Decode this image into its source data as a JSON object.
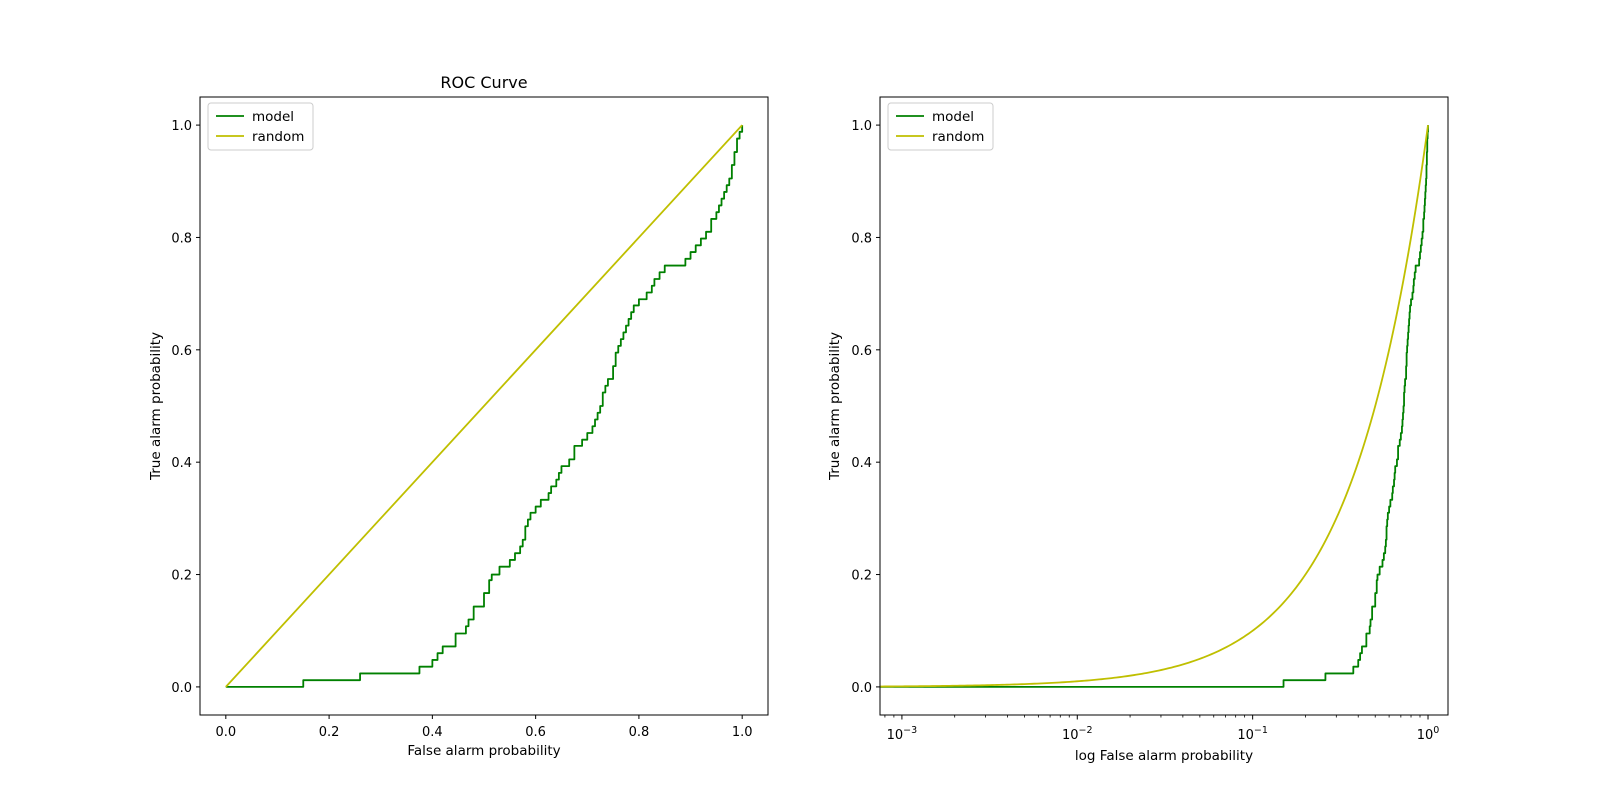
{
  "chart_data": [
    {
      "type": "line",
      "title": "ROC Curve",
      "xlabel": "False alarm probability",
      "ylabel": "True alarm probability",
      "xscale": "linear",
      "xlim": [
        -0.05,
        1.05
      ],
      "ylim": [
        -0.05,
        1.05
      ],
      "xticks": [
        0.0,
        0.2,
        0.4,
        0.6,
        0.8,
        1.0
      ],
      "xtick_labels": [
        "0.0",
        "0.2",
        "0.4",
        "0.6",
        "0.8",
        "1.0"
      ],
      "yticks": [
        0.0,
        0.2,
        0.4,
        0.6,
        0.8,
        1.0
      ],
      "ytick_labels": [
        "0.0",
        "0.2",
        "0.4",
        "0.6",
        "0.8",
        "1.0"
      ],
      "legend": "top-left",
      "grid": false,
      "series": [
        {
          "name": "model",
          "color": "#008000",
          "drawstyle": "steps",
          "x": [
            0.0,
            0.15,
            0.26,
            0.375,
            0.4,
            0.41,
            0.42,
            0.445,
            0.465,
            0.47,
            0.48,
            0.5,
            0.51,
            0.515,
            0.53,
            0.55,
            0.56,
            0.57,
            0.575,
            0.58,
            0.585,
            0.59,
            0.6,
            0.61,
            0.625,
            0.63,
            0.64,
            0.645,
            0.65,
            0.665,
            0.675,
            0.69,
            0.7,
            0.71,
            0.715,
            0.72,
            0.725,
            0.73,
            0.735,
            0.74,
            0.75,
            0.755,
            0.76,
            0.765,
            0.77,
            0.775,
            0.78,
            0.785,
            0.79,
            0.8,
            0.815,
            0.825,
            0.83,
            0.84,
            0.85,
            0.89,
            0.9,
            0.91,
            0.92,
            0.93,
            0.94,
            0.95,
            0.955,
            0.96,
            0.965,
            0.97,
            0.975,
            0.98,
            0.985,
            0.99,
            0.995,
            1.0
          ],
          "y": [
            0.0,
            0.012,
            0.024,
            0.036,
            0.048,
            0.06,
            0.072,
            0.095,
            0.108,
            0.12,
            0.143,
            0.167,
            0.19,
            0.2,
            0.214,
            0.226,
            0.238,
            0.25,
            0.262,
            0.286,
            0.298,
            0.31,
            0.321,
            0.333,
            0.345,
            0.357,
            0.369,
            0.381,
            0.393,
            0.405,
            0.429,
            0.44,
            0.452,
            0.464,
            0.476,
            0.488,
            0.5,
            0.524,
            0.536,
            0.548,
            0.571,
            0.595,
            0.607,
            0.619,
            0.631,
            0.643,
            0.655,
            0.667,
            0.679,
            0.69,
            0.702,
            0.714,
            0.726,
            0.738,
            0.75,
            0.762,
            0.774,
            0.786,
            0.798,
            0.81,
            0.833,
            0.845,
            0.857,
            0.869,
            0.881,
            0.893,
            0.905,
            0.929,
            0.952,
            0.976,
            0.988,
            1.0
          ]
        },
        {
          "name": "random",
          "color": "#bfbf00",
          "drawstyle": "line",
          "x": [
            0.0,
            1.0
          ],
          "y": [
            0.0,
            1.0
          ]
        }
      ]
    },
    {
      "type": "line",
      "title": "",
      "xlabel": "log False alarm probability",
      "ylabel": "True alarm probability",
      "xscale": "log",
      "xlim": [
        0.00075,
        1.3
      ],
      "ylim": [
        -0.05,
        1.05
      ],
      "xticks": [
        0.001,
        0.01,
        0.1,
        1
      ],
      "xtick_labels": [
        {
          "base": "10",
          "exp": "−3"
        },
        {
          "base": "10",
          "exp": "−2"
        },
        {
          "base": "10",
          "exp": "−1"
        },
        {
          "base": "10",
          "exp": "0"
        }
      ],
      "yticks": [
        0.0,
        0.2,
        0.4,
        0.6,
        0.8,
        1.0
      ],
      "ytick_labels": [
        "0.0",
        "0.2",
        "0.4",
        "0.6",
        "0.8",
        "1.0"
      ],
      "legend": "top-left",
      "grid": false,
      "series": [
        {
          "name": "model",
          "color": "#008000",
          "drawstyle": "steps",
          "same_data_as": "model"
        },
        {
          "name": "random",
          "color": "#bfbf00",
          "drawstyle": "line",
          "function": "y = x"
        }
      ]
    }
  ]
}
